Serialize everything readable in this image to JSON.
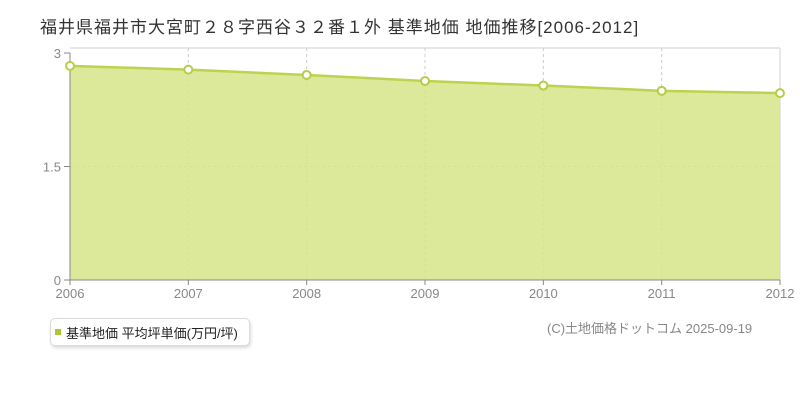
{
  "page": {
    "title": "福井県福井市大宮町２８字西谷３２番１外 基準地価 地価推移[2006-2012]",
    "copyright": "(C)土地価格ドットコム 2025-09-19",
    "background": "#ffffff"
  },
  "legend": {
    "marker_color": "#abc832",
    "label": "基準地価 平均坪単価(万円/坪)"
  },
  "chart_data": {
    "type": "area",
    "title": "福井県福井市大宮町２８字西谷３２番１外 基準地価 地価推移[2006-2012]",
    "x": [
      2006,
      2007,
      2008,
      2009,
      2010,
      2011,
      2012
    ],
    "series": [
      {
        "name": "基準地価 平均坪単価(万円/坪)",
        "values": [
          2.83,
          2.78,
          2.71,
          2.63,
          2.57,
          2.5,
          2.47
        ]
      }
    ],
    "xlabel": "",
    "ylabel": "",
    "ylim": [
      0,
      3
    ],
    "yticks": [
      0,
      1.5,
      3
    ],
    "ytick_labels": [
      "0",
      "1.5",
      "3"
    ],
    "grid": true,
    "legend_position": "bottom-left",
    "colors": {
      "line": "#bdd34f",
      "fill": "#d6e488",
      "marker_fill": "#ffffff",
      "marker_stroke": "#b5cd49",
      "grid": "#cccccc",
      "plot_border": "#e0e0e0",
      "axis": "#888888",
      "tick_label": "#888888"
    }
  }
}
